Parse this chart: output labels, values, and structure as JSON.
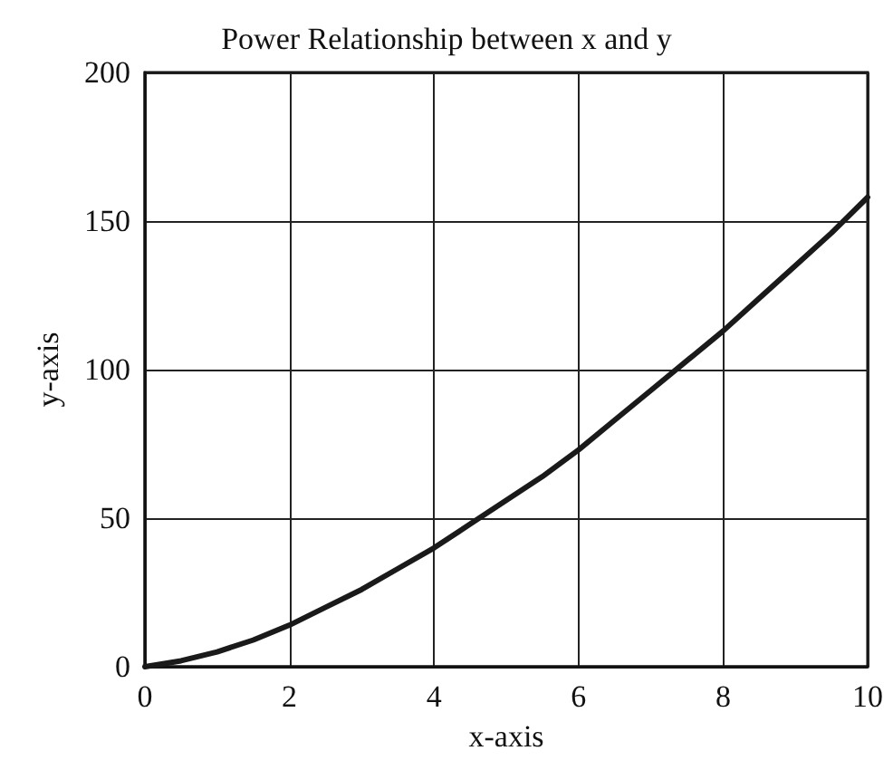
{
  "chart_data": {
    "type": "line",
    "title": "Power Relationship between x and y",
    "xlabel": "x-axis",
    "ylabel": "y-axis",
    "x": [
      0,
      0.5,
      1,
      1.5,
      2,
      2.5,
      3,
      3.5,
      4,
      4.5,
      5,
      5.5,
      6,
      6.5,
      7,
      7.5,
      8,
      8.5,
      9,
      9.5,
      10
    ],
    "series": [
      {
        "color": "#1a1a1a",
        "values": [
          0,
          2,
          5,
          9,
          14,
          20,
          26,
          33,
          40,
          48,
          56,
          64,
          73,
          83,
          93,
          103,
          113,
          124,
          135,
          146,
          158
        ]
      }
    ],
    "xlim": [
      0,
      10
    ],
    "xticks": [
      0,
      2,
      4,
      6,
      8,
      10
    ],
    "ylim": [
      0,
      200
    ],
    "yticks": [
      0,
      50,
      100,
      150,
      200
    ],
    "grid": true,
    "marker": "none",
    "line_style": "solid"
  }
}
